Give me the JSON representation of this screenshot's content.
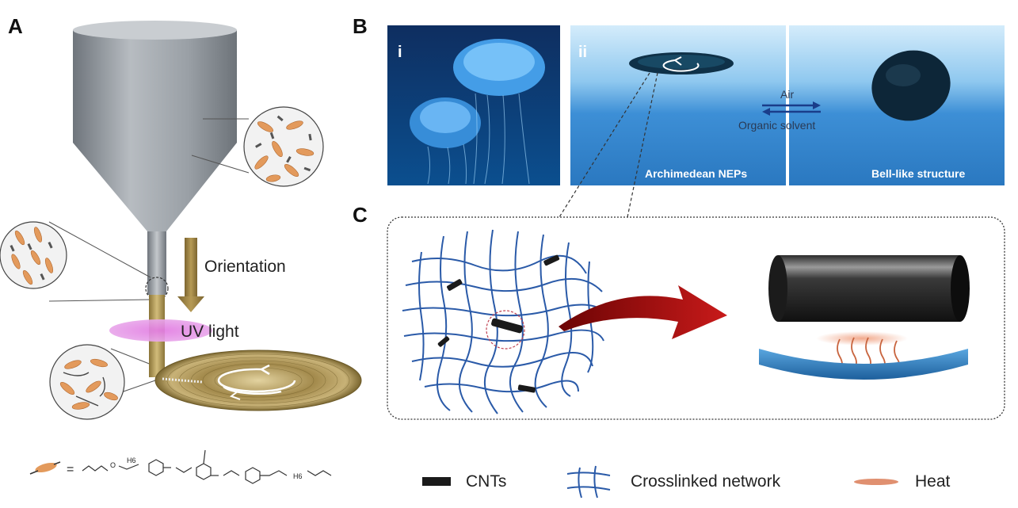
{
  "panels": {
    "a": "A",
    "b": "B",
    "c": "C"
  },
  "panel_a": {
    "orientation_label": "Orientation",
    "uv_label": "UV light",
    "equals": "=",
    "formula_o": "O",
    "formula_h6": "H6",
    "formula_h6b": "H6"
  },
  "panel_b": {
    "sub_i": "i",
    "sub_ii": "ii",
    "air_label": "Air",
    "solvent_label": "Organic solvent",
    "left_caption": "Archimedean NEPs",
    "right_caption": "Bell-like structure"
  },
  "legend": {
    "cnt": "CNTs",
    "network": "Crosslinked network",
    "heat": "Heat"
  },
  "colors": {
    "hopper": "#8f959c",
    "fiber": "#e39a5c",
    "uv": "#e07ae0",
    "gold": "#8a7438",
    "water": "#3d8fd6",
    "network": "#2a5aa8",
    "arrow_red": "#a01010"
  }
}
